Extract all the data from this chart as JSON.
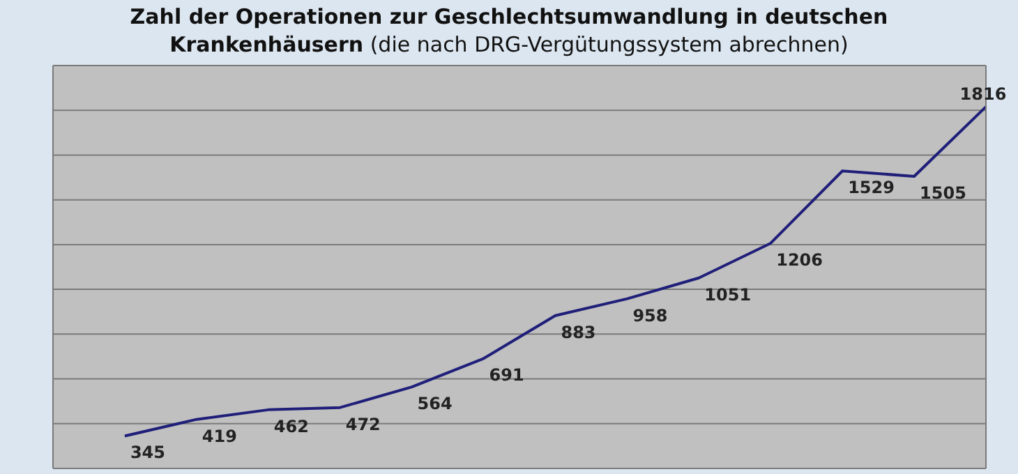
{
  "chart_data": {
    "type": "line",
    "title": "Zahl der Operationen zur Geschlechtsumwandlung in deutschen Krankenhäusern",
    "subtitle": "(die nach DRG-Vergütungssystem abrechnen)",
    "categories": [
      null,
      null,
      null,
      null,
      null,
      null,
      null,
      null,
      null,
      null,
      null,
      null,
      null,
      null
    ],
    "series": [
      {
        "color": "#1f1f7a",
        "values": [
          null,
          345,
          419,
          462,
          472,
          564,
          691,
          883,
          958,
          1051,
          1206,
          1529,
          1505,
          1816
        ]
      }
    ],
    "ylim": [
      200,
      2000
    ],
    "yticks": [
      {
        "value": 200,
        "label": null
      },
      {
        "value": 400,
        "label": null
      },
      {
        "value": 600,
        "label": null
      },
      {
        "value": 800,
        "label": null
      },
      {
        "value": 1000,
        "label": null
      },
      {
        "value": 1200,
        "label": null
      },
      {
        "value": 1400,
        "label": null
      },
      {
        "value": 1600,
        "label": null
      },
      {
        "value": 1800,
        "label": null
      },
      {
        "value": 2000,
        "label": null
      }
    ],
    "grid": "y",
    "tick_labels": false,
    "data_labels": true,
    "legend": false,
    "marker": "none",
    "line_style": "solid"
  }
}
